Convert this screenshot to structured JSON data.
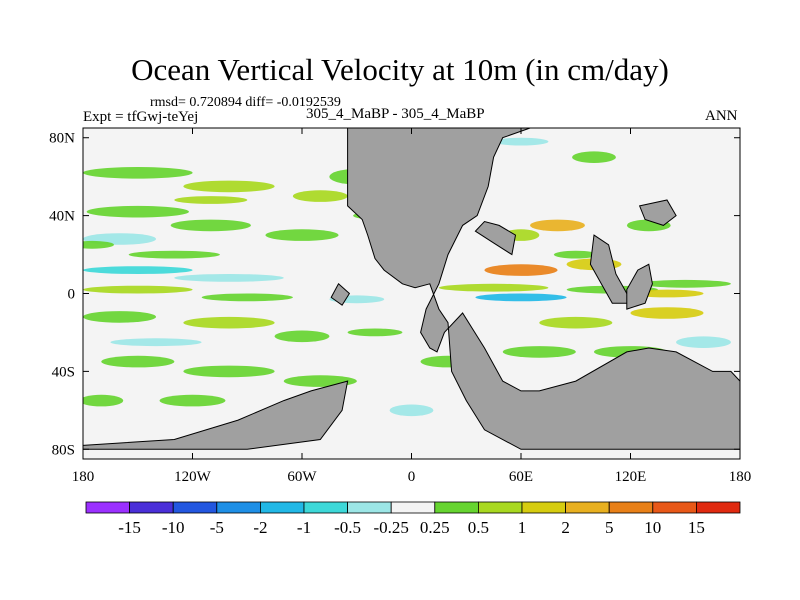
{
  "chart_data": {
    "type": "heatmap",
    "title": "Ocean Vertical Velocity at 10m (in cm/day)",
    "stats_text": "rmsd= 0.720894 diff= -0.0192539",
    "expt_label": "Expt = tfGwj-teYej",
    "case_label": "305_4_MaBP - 305_4_MaBP",
    "season": "ANN",
    "x_ticks": [
      {
        "value": -180,
        "label": "180"
      },
      {
        "value": -120,
        "label": "120W"
      },
      {
        "value": -60,
        "label": "60W"
      },
      {
        "value": 0,
        "label": "0"
      },
      {
        "value": 60,
        "label": "60E"
      },
      {
        "value": 120,
        "label": "120E"
      },
      {
        "value": 180,
        "label": "180"
      }
    ],
    "y_ticks": [
      {
        "value": 80,
        "label": "80N"
      },
      {
        "value": 40,
        "label": "40N"
      },
      {
        "value": 0,
        "label": "0"
      },
      {
        "value": -40,
        "label": "40S"
      },
      {
        "value": -80,
        "label": "80S"
      }
    ],
    "xlim": [
      -180,
      180
    ],
    "ylim": [
      -85,
      85
    ],
    "colorbar": {
      "levels": [
        "-15",
        "-10",
        "-5",
        "-2",
        "-1",
        "-0.5",
        "-0.25",
        "0.25",
        "0.5",
        "1",
        "2",
        "5",
        "10",
        "15"
      ],
      "colors": [
        "#9B30FF",
        "#4A2FD8",
        "#2357E0",
        "#1E8FE6",
        "#22B8E6",
        "#3DD8D8",
        "#9CE6E6",
        "#F4F4F4",
        "#66D430",
        "#A8D820",
        "#D6CC10",
        "#E8B020",
        "#E88018",
        "#E85818",
        "#E02A10"
      ]
    },
    "land_color": "#A0A0A0"
  }
}
